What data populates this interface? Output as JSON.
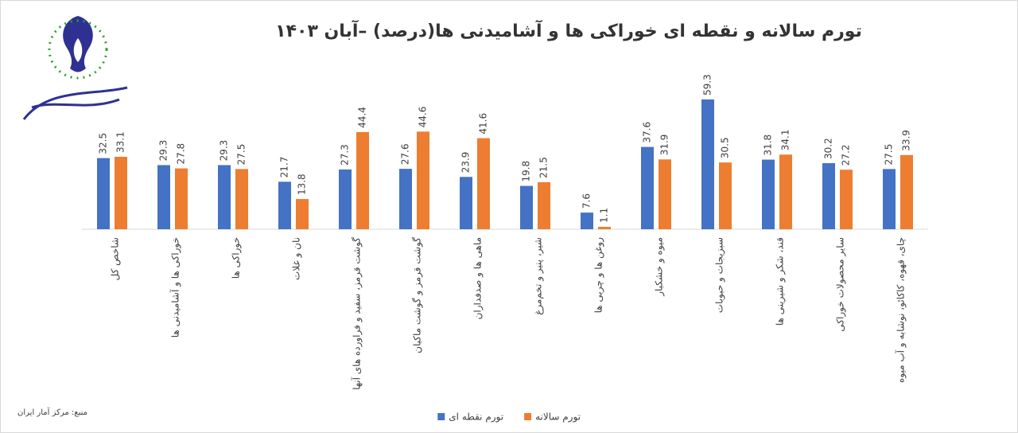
{
  "chart_data": {
    "type": "bar",
    "title": "تورم سالانه و نقطه ای خوراکی ها و آشامیدنی ها(درصد) –آبان ۱۴۰۳",
    "source": "منبع: مرکز آمار ایران",
    "categories": [
      "شاخص کل",
      "خوراکی ها و آشامیدنی ها",
      "خوراکی ها",
      "نان و غلات",
      "گوشت قرمز، سفید و فراورده های آنها",
      "گوشت قرمز و گوشت ماکیان",
      "ماهی ها و صدفداران",
      "شیر، پنیر و تخم‌مرغ",
      "روغن ها و چربی ها",
      "میوه و خشکبار",
      "سبزیجات و حبوبات",
      "قند، شکر و شیرینی ها",
      "سایر محصولات خوراکی",
      "چای، قهوه، کاکائو، نوشابه و آب میوه"
    ],
    "series": [
      {
        "name": "تورم نقطه ای",
        "color": "#4472c4",
        "values": [
          32.5,
          29.3,
          29.3,
          21.7,
          27.3,
          27.6,
          23.9,
          19.8,
          7.6,
          37.6,
          59.3,
          31.8,
          30.2,
          27.5
        ]
      },
      {
        "name": "تورم سالانه",
        "color": "#ed7d31",
        "values": [
          33.1,
          27.8,
          27.5,
          13.8,
          44.4,
          44.6,
          41.6,
          21.5,
          1.1,
          31.9,
          30.5,
          34.1,
          27.2,
          33.9
        ]
      }
    ],
    "ylim": [
      0,
      60
    ]
  }
}
